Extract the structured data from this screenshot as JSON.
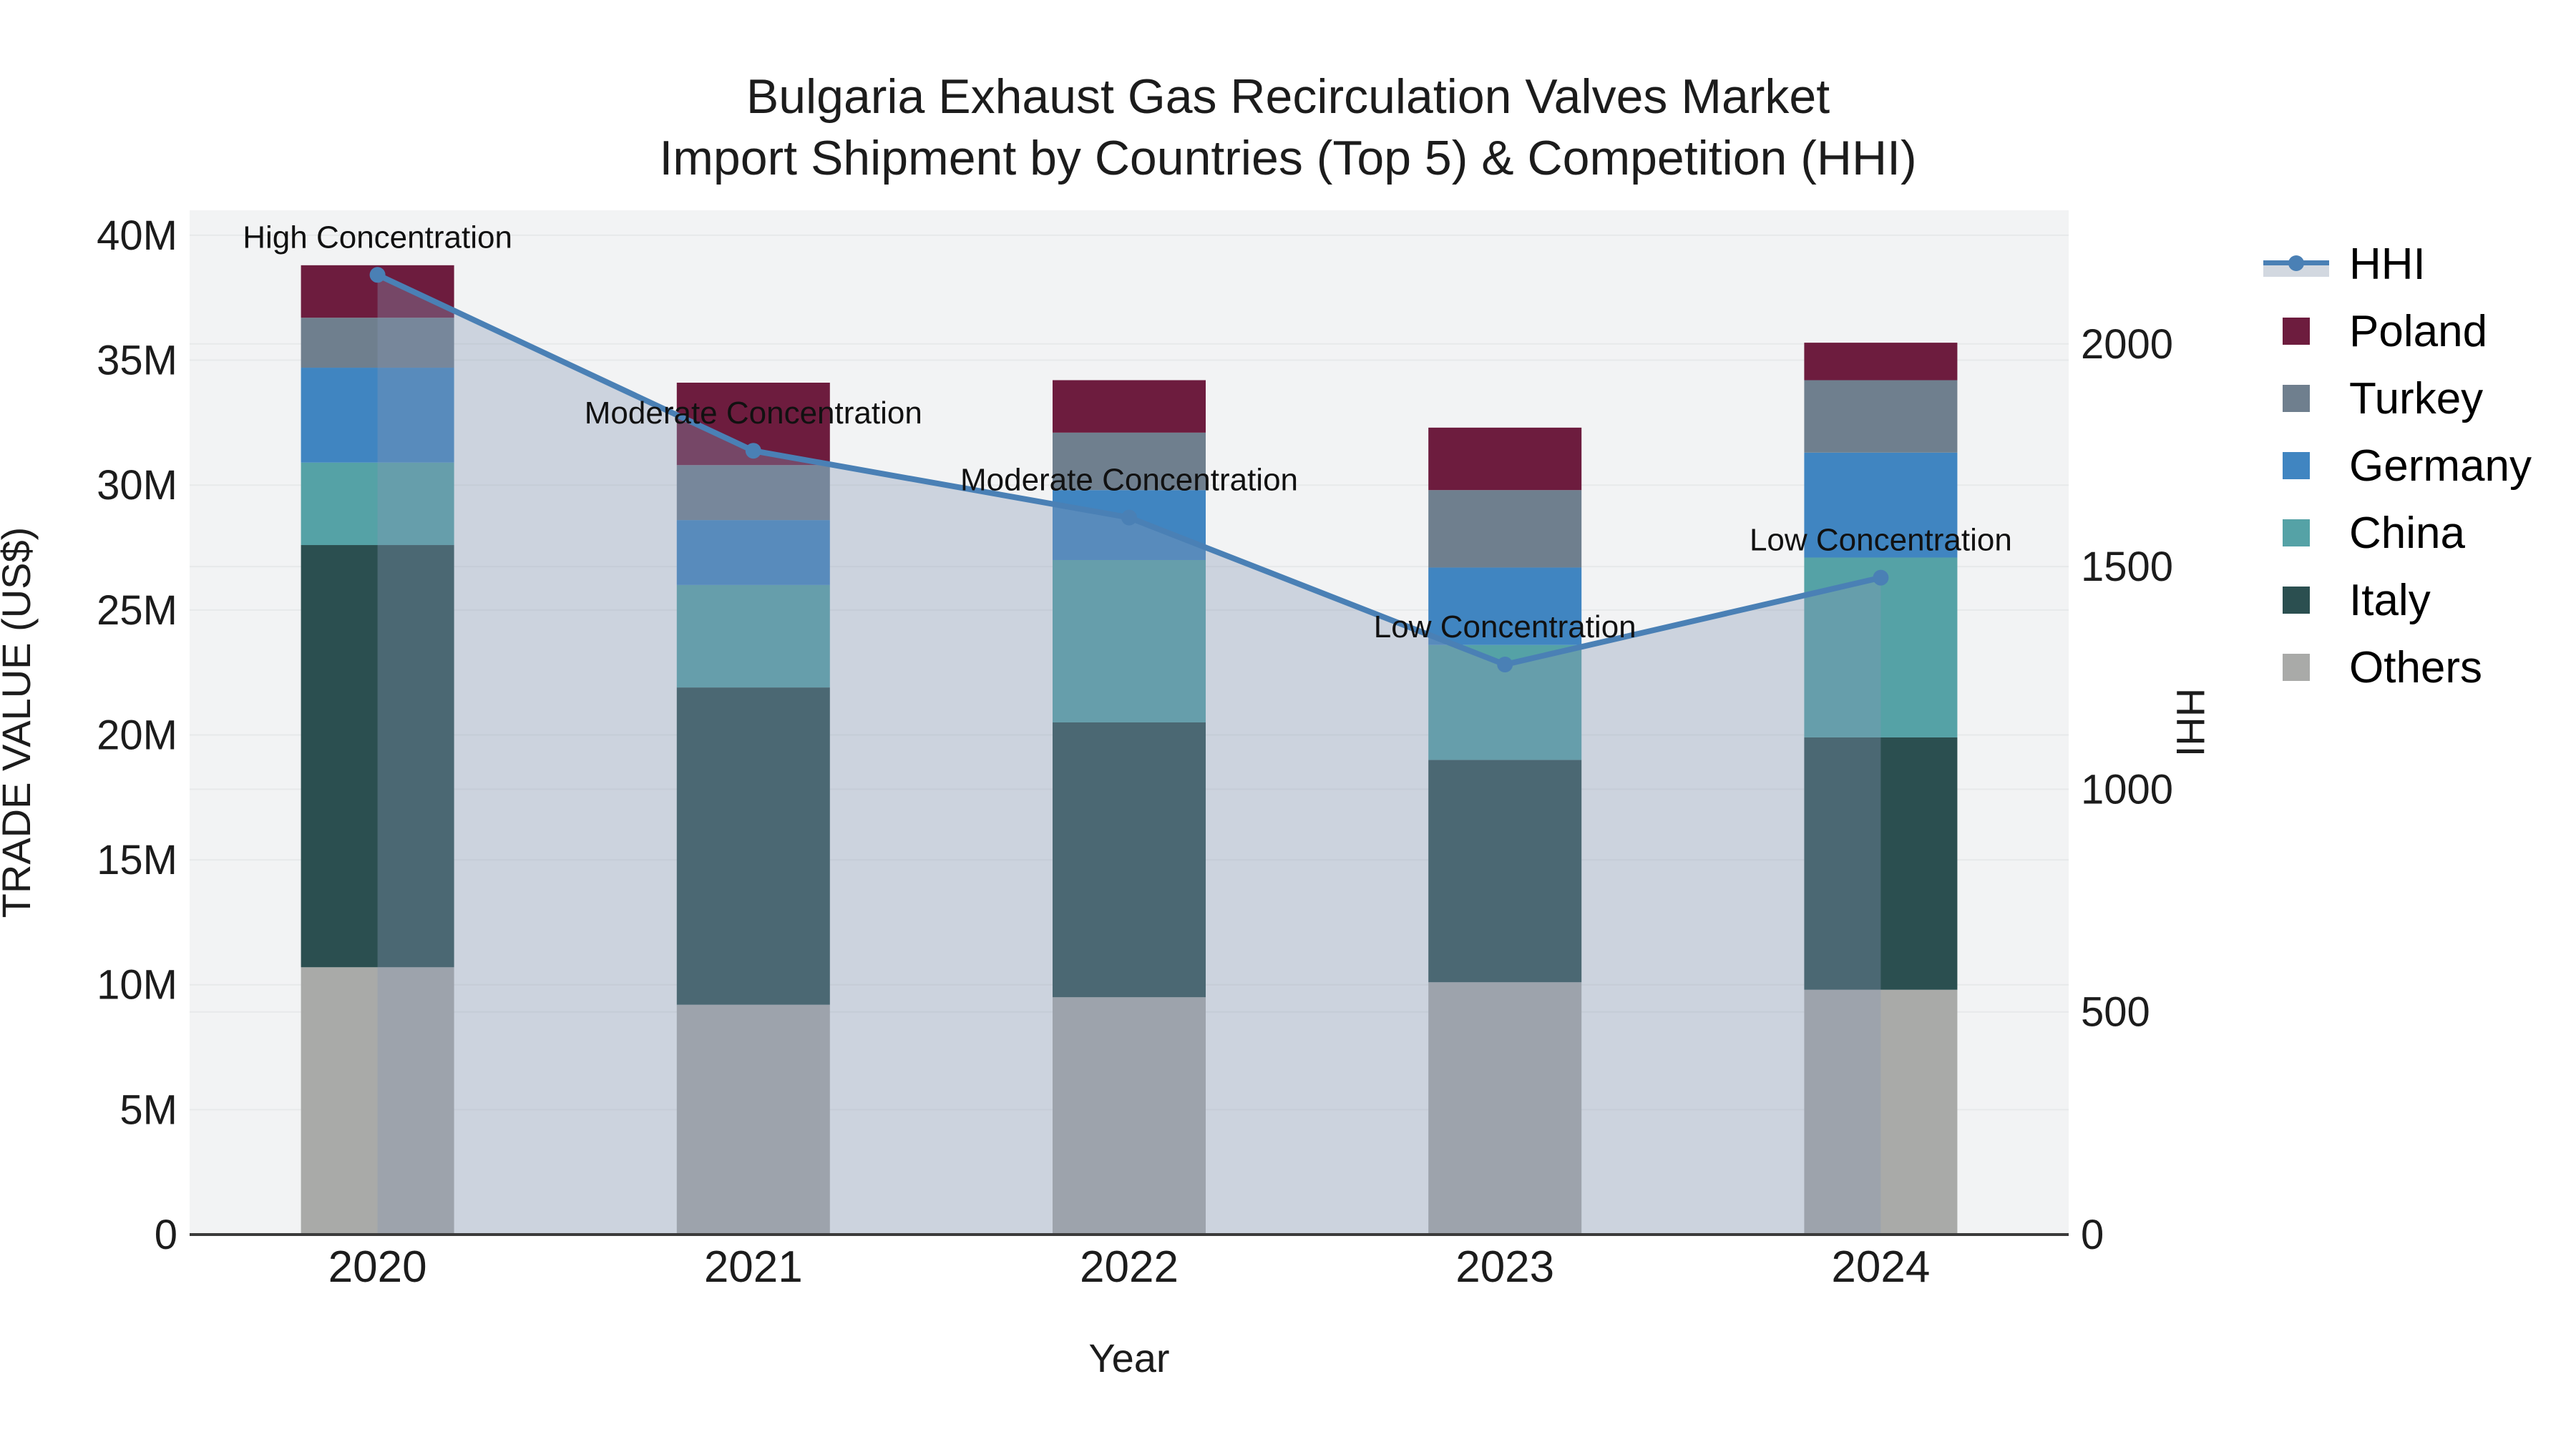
{
  "title": {
    "line1": "Bulgaria Exhaust Gas Recirculation Valves Market",
    "line2": "Import Shipment by Countries (Top 5) & Competition (HHI)"
  },
  "axes": {
    "x_label": "Year",
    "y_left_label": "TRADE VALUE (US$)",
    "y_right_label": "HHI"
  },
  "colors": {
    "poland": "#6d1c3e",
    "turkey": "#6f7f8e",
    "germany": "#4085c1",
    "china": "#55a2a6",
    "italy": "#2b4f50",
    "others": "#a9aaa8",
    "hhi_line": "#4a80b5",
    "hhi_area": "rgba(135,152,180,0.35)",
    "plot_bg": "#f2f3f4",
    "gridline": "#e7e9ea",
    "axis_line": "#3b3b3b"
  },
  "chart_data": {
    "type": "bar-line-combo",
    "description": "Stacked bars = import trade value (million US$) by origin country; line on right axis = HHI market concentration",
    "categories": [
      "2020",
      "2021",
      "2022",
      "2023",
      "2024"
    ],
    "stack_order_bottom_to_top": [
      "Others",
      "Italy",
      "China",
      "Germany",
      "Turkey",
      "Poland"
    ],
    "series": [
      {
        "name": "Poland",
        "color": "#6d1c3e",
        "values": [
          2.1,
          3.3,
          2.1,
          2.5,
          1.5
        ]
      },
      {
        "name": "Turkey",
        "color": "#6f7f8e",
        "values": [
          2.0,
          2.2,
          2.3,
          3.1,
          2.9
        ]
      },
      {
        "name": "Germany",
        "color": "#4085c1",
        "values": [
          3.8,
          2.6,
          2.8,
          3.1,
          4.2
        ]
      },
      {
        "name": "China",
        "color": "#55a2a6",
        "values": [
          3.3,
          4.1,
          6.5,
          4.6,
          7.2
        ]
      },
      {
        "name": "Italy",
        "color": "#2b4f50",
        "values": [
          16.9,
          12.7,
          11.0,
          8.9,
          10.1
        ]
      },
      {
        "name": "Others",
        "color": "#a9aaa8",
        "values": [
          10.7,
          9.2,
          9.5,
          10.1,
          9.8
        ]
      }
    ],
    "bar_totals_millions": [
      38.8,
      34.1,
      34.2,
      32.3,
      35.7
    ],
    "line": {
      "name": "HHI",
      "color": "#4a80b5",
      "values": [
        2155,
        1760,
        1610,
        1280,
        1475
      ]
    },
    "annotations": [
      {
        "category": "2020",
        "text": "High Concentration"
      },
      {
        "category": "2021",
        "text": "Moderate Concentration"
      },
      {
        "category": "2022",
        "text": "Moderate Concentration"
      },
      {
        "category": "2023",
        "text": "Low Concentration"
      },
      {
        "category": "2024",
        "text": "Low Concentration"
      }
    ],
    "y_left": {
      "unit": "M",
      "ticks": [
        "0",
        "5M",
        "10M",
        "15M",
        "20M",
        "25M",
        "30M",
        "35M",
        "40M"
      ],
      "tick_values": [
        0,
        5,
        10,
        15,
        20,
        25,
        30,
        35,
        40
      ],
      "axis_max": 41
    },
    "y_right": {
      "ticks": [
        "0",
        "500",
        "1000",
        "1500",
        "2000"
      ],
      "tick_values": [
        0,
        500,
        1000,
        1500,
        2000
      ],
      "axis_max": 2300
    },
    "legend_order": [
      "HHI",
      "Poland",
      "Turkey",
      "Germany",
      "China",
      "Italy",
      "Others"
    ],
    "legend_position": "right",
    "grid": true
  }
}
